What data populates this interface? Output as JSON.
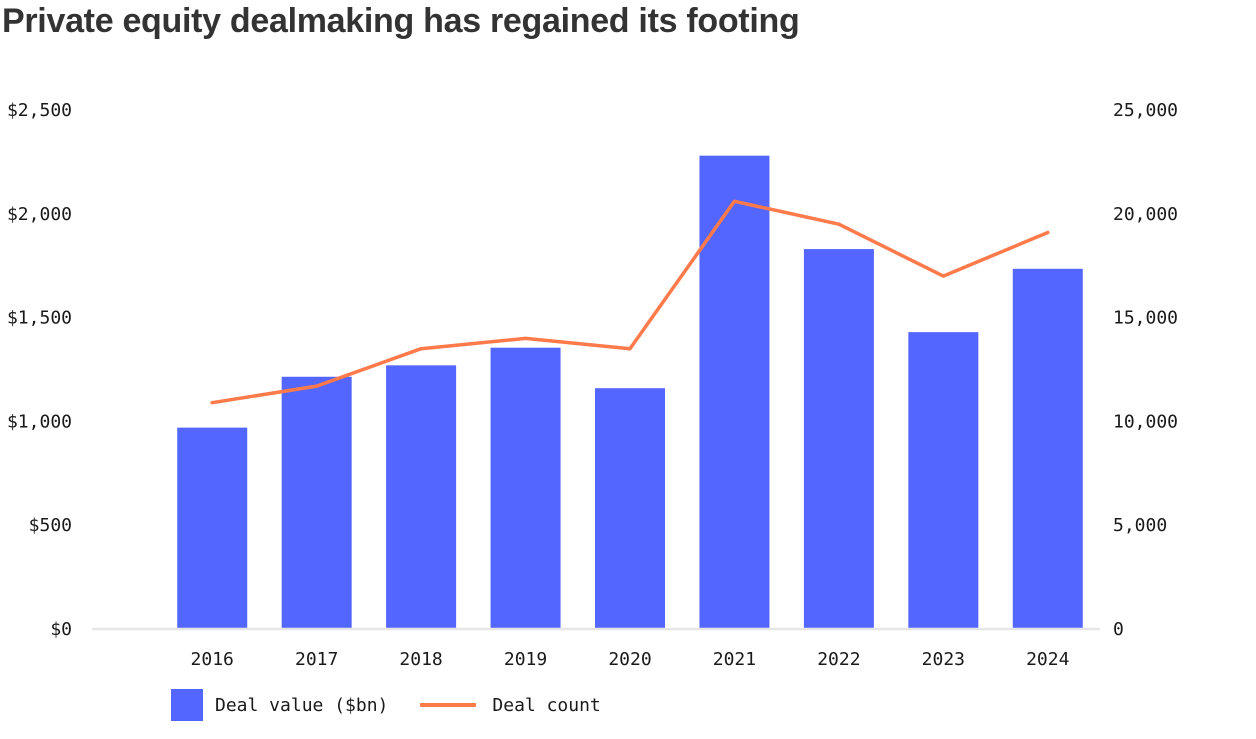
{
  "title": "Private equity dealmaking has regained its footing",
  "chart_data": {
    "type": "bar",
    "title": "Private equity dealmaking has regained its footing",
    "categories": [
      "2016",
      "2017",
      "2018",
      "2019",
      "2020",
      "2021",
      "2022",
      "2023",
      "2024"
    ],
    "series": [
      {
        "name": "Deal value ($bn)",
        "type": "bar",
        "axis": "left",
        "color": "#5366FF",
        "values": [
          970,
          1215,
          1270,
          1355,
          1160,
          2280,
          1830,
          1430,
          1735
        ]
      },
      {
        "name": "Deal count",
        "type": "line",
        "axis": "right",
        "color": "#FF7A4A",
        "values": [
          10900,
          11700,
          13500,
          14000,
          13500,
          20600,
          19500,
          17000,
          19100
        ]
      }
    ],
    "y_left": {
      "ylim": [
        0,
        2500
      ],
      "ticks": [
        0,
        500,
        1000,
        1500,
        2000,
        2500
      ],
      "tick_labels": [
        "$0",
        "$500",
        "$1,000",
        "$1,500",
        "$2,000",
        "$2,500"
      ]
    },
    "y_right": {
      "ylim": [
        0,
        25000
      ],
      "ticks": [
        0,
        5000,
        10000,
        15000,
        20000,
        25000
      ],
      "tick_labels": [
        "0",
        "5,000",
        "10,000",
        "15,000",
        "20,000",
        "25,000"
      ]
    },
    "grid": false,
    "baseline_color": "#E6E6E6",
    "legend": {
      "placement": "bottom-left",
      "items": [
        {
          "label": "Deal value ($bn)",
          "marker": "square",
          "color": "#5366FF"
        },
        {
          "label": "Deal count",
          "marker": "line",
          "color": "#FF7A4A"
        }
      ]
    }
  }
}
